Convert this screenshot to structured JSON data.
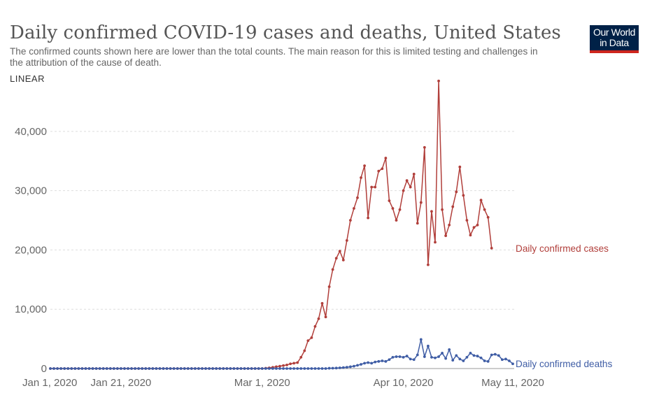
{
  "header": {
    "title": "Daily confirmed COVID-19 cases and deaths, United States",
    "subtitle": "The confirmed counts shown here are lower than the total counts. The main reason for this is limited testing and challenges in the attribution of the cause of death.",
    "scale_label": "LINEAR"
  },
  "logo": {
    "line1": "Our World",
    "line2": "in Data"
  },
  "colors": {
    "cases": "#b13f3b",
    "deaths": "#3f5da5",
    "grid": "#dddddd",
    "axis": "#999999"
  },
  "chart_data": {
    "type": "line",
    "title": "Daily confirmed COVID-19 cases and deaths, United States",
    "xlabel": "",
    "ylabel": "",
    "x_start": "2020-01-01",
    "x_end": "2020-05-11",
    "x_ticks": [
      {
        "date": "2020-01-01",
        "label": "Jan 1, 2020"
      },
      {
        "date": "2020-01-21",
        "label": "Jan 21, 2020"
      },
      {
        "date": "2020-03-01",
        "label": "Mar 1, 2020"
      },
      {
        "date": "2020-04-10",
        "label": "Apr 10, 2020"
      },
      {
        "date": "2020-05-11",
        "label": "May 11, 2020"
      }
    ],
    "ylim": [
      0,
      48000
    ],
    "y_ticks": [
      {
        "value": 0,
        "label": "0"
      },
      {
        "value": 10000,
        "label": "10,000"
      },
      {
        "value": 20000,
        "label": "20,000"
      },
      {
        "value": 30000,
        "label": "30,000"
      },
      {
        "value": 40000,
        "label": "40,000"
      }
    ],
    "grid": true,
    "legend": "inline labels at the right end of each line",
    "series": [
      {
        "name": "Daily confirmed cases",
        "color": "#b13f3b",
        "points": [
          {
            "date": "2020-03-01",
            "y": 0
          },
          {
            "date": "2020-03-02",
            "y": 50
          },
          {
            "date": "2020-03-03",
            "y": 120
          },
          {
            "date": "2020-03-04",
            "y": 200
          },
          {
            "date": "2020-03-05",
            "y": 300
          },
          {
            "date": "2020-03-06",
            "y": 400
          },
          {
            "date": "2020-03-07",
            "y": 500
          },
          {
            "date": "2020-03-08",
            "y": 600
          },
          {
            "date": "2020-03-09",
            "y": 800
          },
          {
            "date": "2020-03-10",
            "y": 900
          },
          {
            "date": "2020-03-11",
            "y": 1000
          },
          {
            "date": "2020-03-12",
            "y": 1900
          },
          {
            "date": "2020-03-13",
            "y": 3000
          },
          {
            "date": "2020-03-14",
            "y": 4700
          },
          {
            "date": "2020-03-15",
            "y": 5200
          },
          {
            "date": "2020-03-16",
            "y": 7100
          },
          {
            "date": "2020-03-17",
            "y": 8400
          },
          {
            "date": "2020-03-18",
            "y": 11000
          },
          {
            "date": "2020-03-19",
            "y": 8700
          },
          {
            "date": "2020-03-20",
            "y": 13800
          },
          {
            "date": "2020-03-21",
            "y": 16700
          },
          {
            "date": "2020-03-22",
            "y": 18600
          },
          {
            "date": "2020-03-23",
            "y": 19800
          },
          {
            "date": "2020-03-24",
            "y": 18300
          },
          {
            "date": "2020-03-25",
            "y": 21600
          },
          {
            "date": "2020-03-26",
            "y": 25000
          },
          {
            "date": "2020-03-27",
            "y": 27000
          },
          {
            "date": "2020-03-28",
            "y": 28800
          },
          {
            "date": "2020-03-29",
            "y": 32200
          },
          {
            "date": "2020-03-30",
            "y": 34200
          },
          {
            "date": "2020-03-31",
            "y": 25400
          },
          {
            "date": "2020-04-01",
            "y": 30600
          },
          {
            "date": "2020-04-02",
            "y": 30600
          },
          {
            "date": "2020-04-03",
            "y": 33300
          },
          {
            "date": "2020-04-04",
            "y": 33700
          },
          {
            "date": "2020-04-05",
            "y": 35500
          },
          {
            "date": "2020-04-06",
            "y": 28300
          },
          {
            "date": "2020-04-07",
            "y": 27000
          },
          {
            "date": "2020-04-08",
            "y": 25000
          },
          {
            "date": "2020-04-09",
            "y": 26800
          },
          {
            "date": "2020-04-10",
            "y": 30000
          },
          {
            "date": "2020-04-11",
            "y": 31700
          },
          {
            "date": "2020-04-12",
            "y": 30600
          },
          {
            "date": "2020-04-13",
            "y": 32800
          },
          {
            "date": "2020-04-14",
            "y": 24500
          },
          {
            "date": "2020-04-15",
            "y": 28000
          },
          {
            "date": "2020-04-16",
            "y": 37300
          },
          {
            "date": "2020-04-17",
            "y": 17500
          },
          {
            "date": "2020-04-18",
            "y": 26500
          },
          {
            "date": "2020-04-19",
            "y": 21300
          },
          {
            "date": "2020-04-20",
            "y": 48500
          },
          {
            "date": "2020-04-21",
            "y": 26800
          },
          {
            "date": "2020-04-22",
            "y": 22400
          },
          {
            "date": "2020-04-23",
            "y": 24200
          },
          {
            "date": "2020-04-24",
            "y": 27300
          },
          {
            "date": "2020-04-25",
            "y": 29800
          },
          {
            "date": "2020-04-26",
            "y": 34000
          },
          {
            "date": "2020-04-27",
            "y": 29200
          },
          {
            "date": "2020-04-28",
            "y": 25000
          },
          {
            "date": "2020-04-29",
            "y": 22500
          },
          {
            "date": "2020-04-30",
            "y": 23800
          },
          {
            "date": "2020-05-01",
            "y": 24200
          },
          {
            "date": "2020-05-02",
            "y": 28400
          },
          {
            "date": "2020-05-03",
            "y": 26800
          },
          {
            "date": "2020-05-04",
            "y": 25500
          },
          {
            "date": "2020-05-05",
            "y": 20300
          }
        ]
      },
      {
        "name": "Daily confirmed deaths",
        "color": "#3f5da5",
        "points": [
          {
            "date": "2020-03-20",
            "y": 50
          },
          {
            "date": "2020-03-21",
            "y": 60
          },
          {
            "date": "2020-03-22",
            "y": 80
          },
          {
            "date": "2020-03-23",
            "y": 120
          },
          {
            "date": "2020-03-24",
            "y": 160
          },
          {
            "date": "2020-03-25",
            "y": 220
          },
          {
            "date": "2020-03-26",
            "y": 300
          },
          {
            "date": "2020-03-27",
            "y": 400
          },
          {
            "date": "2020-03-28",
            "y": 550
          },
          {
            "date": "2020-03-29",
            "y": 700
          },
          {
            "date": "2020-03-30",
            "y": 900
          },
          {
            "date": "2020-03-31",
            "y": 1000
          },
          {
            "date": "2020-04-01",
            "y": 900
          },
          {
            "date": "2020-04-02",
            "y": 1100
          },
          {
            "date": "2020-04-03",
            "y": 1200
          },
          {
            "date": "2020-04-04",
            "y": 1300
          },
          {
            "date": "2020-04-05",
            "y": 1200
          },
          {
            "date": "2020-04-06",
            "y": 1500
          },
          {
            "date": "2020-04-07",
            "y": 1900
          },
          {
            "date": "2020-04-08",
            "y": 2000
          },
          {
            "date": "2020-04-09",
            "y": 2000
          },
          {
            "date": "2020-04-10",
            "y": 1900
          },
          {
            "date": "2020-04-11",
            "y": 2100
          },
          {
            "date": "2020-04-12",
            "y": 1600
          },
          {
            "date": "2020-04-13",
            "y": 1500
          },
          {
            "date": "2020-04-14",
            "y": 2300
          },
          {
            "date": "2020-04-15",
            "y": 4900
          },
          {
            "date": "2020-04-16",
            "y": 2000
          },
          {
            "date": "2020-04-17",
            "y": 3800
          },
          {
            "date": "2020-04-18",
            "y": 1900
          },
          {
            "date": "2020-04-19",
            "y": 1800
          },
          {
            "date": "2020-04-20",
            "y": 2000
          },
          {
            "date": "2020-04-21",
            "y": 2600
          },
          {
            "date": "2020-04-22",
            "y": 1700
          },
          {
            "date": "2020-04-23",
            "y": 3200
          },
          {
            "date": "2020-04-24",
            "y": 1400
          },
          {
            "date": "2020-04-25",
            "y": 2200
          },
          {
            "date": "2020-04-26",
            "y": 1600
          },
          {
            "date": "2020-04-27",
            "y": 1300
          },
          {
            "date": "2020-04-28",
            "y": 1900
          },
          {
            "date": "2020-04-29",
            "y": 2600
          },
          {
            "date": "2020-04-30",
            "y": 2200
          },
          {
            "date": "2020-05-01",
            "y": 2100
          },
          {
            "date": "2020-05-02",
            "y": 1800
          },
          {
            "date": "2020-05-03",
            "y": 1300
          },
          {
            "date": "2020-05-04",
            "y": 1200
          },
          {
            "date": "2020-05-05",
            "y": 2300
          },
          {
            "date": "2020-05-06",
            "y": 2400
          },
          {
            "date": "2020-05-07",
            "y": 2200
          },
          {
            "date": "2020-05-08",
            "y": 1500
          },
          {
            "date": "2020-05-09",
            "y": 1600
          },
          {
            "date": "2020-05-10",
            "y": 1300
          },
          {
            "date": "2020-05-11",
            "y": 800
          }
        ]
      }
    ]
  }
}
